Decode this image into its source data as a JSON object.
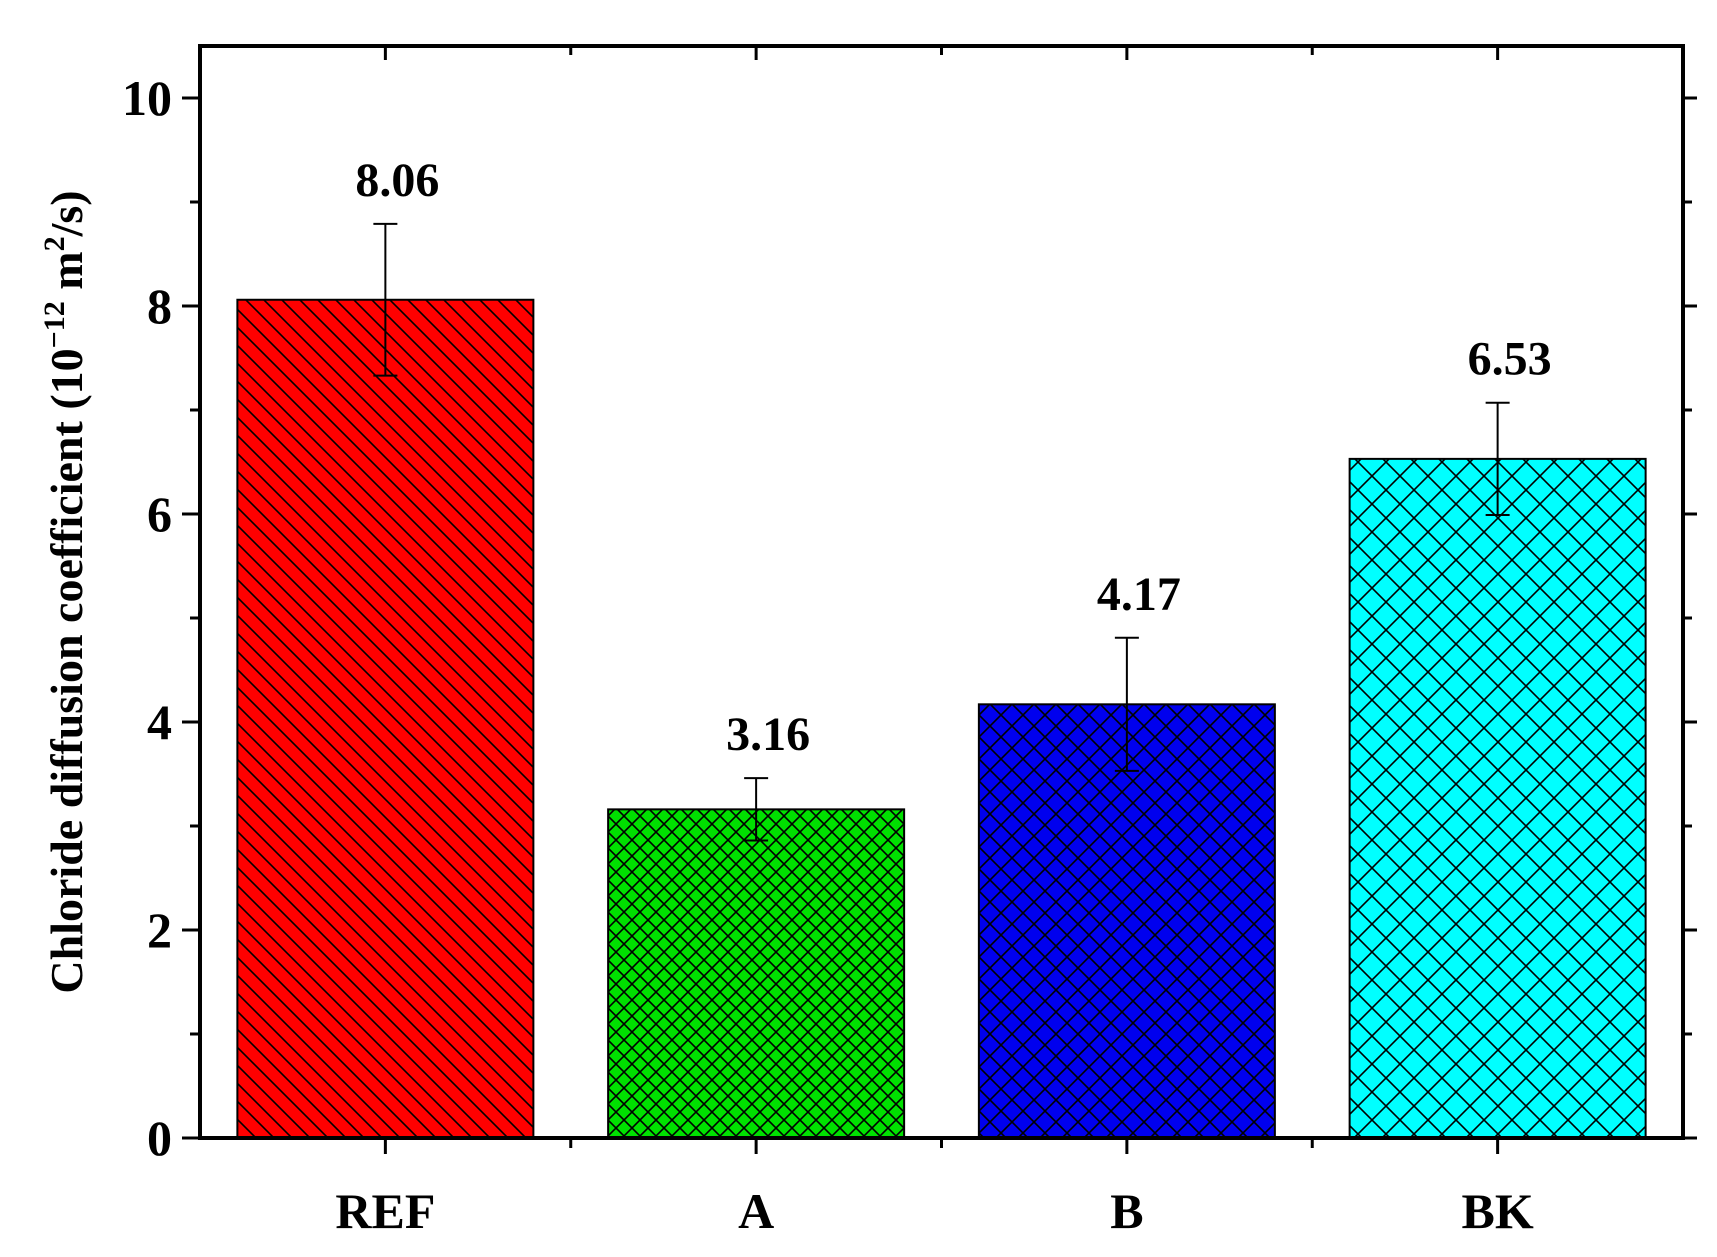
{
  "chart_data": {
    "type": "bar",
    "title": "",
    "xlabel": "",
    "ylabel": {
      "main": "Chloride diffusion coefficient (10",
      "exp": "−12",
      "mid": " m",
      "exp2": "2",
      "tail": "/s)"
    },
    "categories": [
      "REF",
      "A",
      "B",
      "BK"
    ],
    "values": [
      8.06,
      3.16,
      4.17,
      6.53
    ],
    "value_labels": [
      "8.06",
      "3.16",
      "4.17",
      "6.53"
    ],
    "errors": [
      0.73,
      0.3,
      0.64,
      0.54
    ],
    "colors": [
      "#ff0000",
      "#00e000",
      "#0000ee",
      "#00ffff"
    ],
    "patterns": [
      "diagonal",
      "fine-cross",
      "cross",
      "wide-cross"
    ],
    "ylim": [
      0,
      10.5
    ],
    "yticks": [
      0,
      2,
      4,
      6,
      8,
      10
    ],
    "ytick_labels": [
      "0",
      "2",
      "4",
      "6",
      "8",
      "10"
    ],
    "grid": false,
    "legend": "none"
  }
}
